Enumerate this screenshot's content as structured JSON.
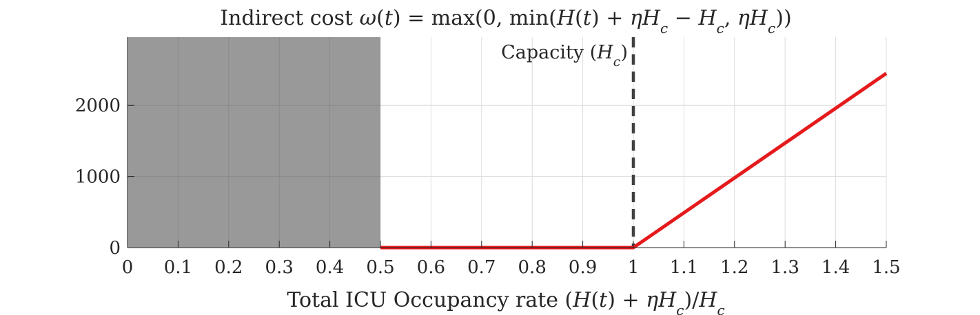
{
  "chart_data": {
    "type": "line",
    "title": "Indirect cost ω(t) = max(0, min(H(t) + ηH_c − H_c, ηH_c))",
    "xlabel": "Total ICU Occupancy rate (H(t) + ηH_c)/H_c",
    "ylabel": "",
    "xlim": [
      0,
      1.5
    ],
    "ylim": [
      0,
      2960
    ],
    "xticks": [
      0,
      0.1,
      0.2,
      0.3,
      0.4,
      0.5,
      0.6,
      0.7,
      0.8,
      0.9,
      1,
      1.1,
      1.2,
      1.3,
      1.4,
      1.5
    ],
    "xtick_labels": [
      "0",
      "0.1",
      "0.2",
      "0.3",
      "0.4",
      "0.5",
      "0.6",
      "0.7",
      "0.8",
      "0.9",
      "1",
      "1.1",
      "1.2",
      "1.3",
      "1.4",
      "1.5"
    ],
    "yticks": [
      0,
      1000,
      2000
    ],
    "ytick_labels": [
      "0",
      "1000",
      "2000"
    ],
    "grid": true,
    "series": [
      {
        "x": [
          0.5,
          1.0,
          1.5
        ],
        "y": [
          0,
          0,
          2450
        ],
        "color": "#e41a1c"
      }
    ],
    "shaded_region": {
      "x": [
        0,
        0.5
      ],
      "color": "#999999"
    },
    "vertical_line": {
      "x": 1.0,
      "label": "Capacity (H_c)",
      "color": "#404040",
      "style": "dashed"
    }
  }
}
